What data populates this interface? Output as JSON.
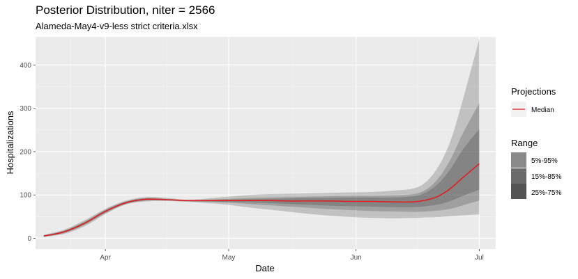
{
  "chart_data": {
    "type": "area",
    "title": "Posterior Distribution, niter = 2566",
    "subtitle": "Alameda-May4-v9-less strict criteria.xlsx",
    "xlabel": "Date",
    "ylabel": "Hospitalizations",
    "xlim": [
      "2020-03-15",
      "2020-07-05"
    ],
    "ylim": [
      -25,
      465
    ],
    "x_ticks": [
      {
        "date": "2020-04-01",
        "label": "Apr"
      },
      {
        "date": "2020-05-01",
        "label": "May"
      },
      {
        "date": "2020-06-01",
        "label": "Jun"
      },
      {
        "date": "2020-07-01",
        "label": "Jul"
      }
    ],
    "y_ticks": [
      0,
      100,
      200,
      300,
      400
    ],
    "grid": true,
    "x": [
      "2020-03-17",
      "2020-03-22",
      "2020-03-27",
      "2020-04-01",
      "2020-04-06",
      "2020-04-11",
      "2020-04-16",
      "2020-04-21",
      "2020-04-26",
      "2020-05-01",
      "2020-05-06",
      "2020-05-11",
      "2020-05-16",
      "2020-05-21",
      "2020-05-26",
      "2020-05-31",
      "2020-06-05",
      "2020-06-10",
      "2020-06-15",
      "2020-06-18",
      "2020-06-21",
      "2020-06-24",
      "2020-06-27",
      "2020-07-01"
    ],
    "median": [
      5,
      15,
      35,
      62,
      82,
      90,
      89,
      87,
      87,
      87,
      87,
      87,
      86,
      86,
      86,
      85,
      85,
      84,
      84,
      88,
      97,
      115,
      140,
      172
    ],
    "ranges": [
      {
        "name": "5%-95%",
        "low": [
          3,
          10,
          28,
          56,
          78,
          85,
          86,
          84,
          81,
          77,
          71,
          66,
          61,
          56,
          52,
          49,
          47,
          46,
          47,
          48,
          49,
          51,
          53,
          55
        ],
        "high": [
          8,
          20,
          42,
          68,
          87,
          95,
          93,
          89,
          92,
          96,
          100,
          102,
          103,
          104,
          105,
          106,
          107,
          110,
          115,
          130,
          165,
          225,
          320,
          460
        ]
      },
      {
        "name": "15%-85%",
        "low": [
          4,
          12,
          31,
          58,
          79,
          87,
          87,
          85,
          84,
          82,
          79,
          76,
          73,
          70,
          67,
          65,
          63,
          62,
          61,
          62,
          64,
          68,
          76,
          87
        ],
        "high": [
          7,
          18,
          39,
          66,
          85,
          93,
          91,
          88,
          89,
          91,
          93,
          94,
          95,
          96,
          97,
          98,
          98,
          99,
          102,
          112,
          138,
          182,
          242,
          312
        ]
      },
      {
        "name": "25%-75%",
        "low": [
          4,
          13,
          33,
          60,
          80,
          88,
          88,
          86,
          85,
          84,
          83,
          81,
          79,
          77,
          75,
          74,
          73,
          72,
          72,
          74,
          78,
          86,
          98,
          112
        ],
        "high": [
          6,
          17,
          37,
          64,
          84,
          92,
          90,
          88,
          88,
          89,
          90,
          91,
          92,
          93,
          93,
          94,
          94,
          94,
          97,
          106,
          126,
          160,
          205,
          252
        ]
      }
    ],
    "legend": {
      "position": "right",
      "projections_title": "Projections",
      "median_label": "Median",
      "range_title": "Range",
      "range_labels": [
        "5%-95%",
        "15%-85%",
        "25%-75%"
      ]
    },
    "colors": {
      "median": "#e41a1c",
      "panel": "#ebebeb",
      "grid_major": "#ffffff",
      "grid_minor": "#f5f5f5",
      "band_fill": "#1a1a1a",
      "legend_key_bg": "#f2f2f2",
      "legend_swatches": [
        "#8a8a8a",
        "#6b6b6b",
        "#545454"
      ]
    }
  }
}
